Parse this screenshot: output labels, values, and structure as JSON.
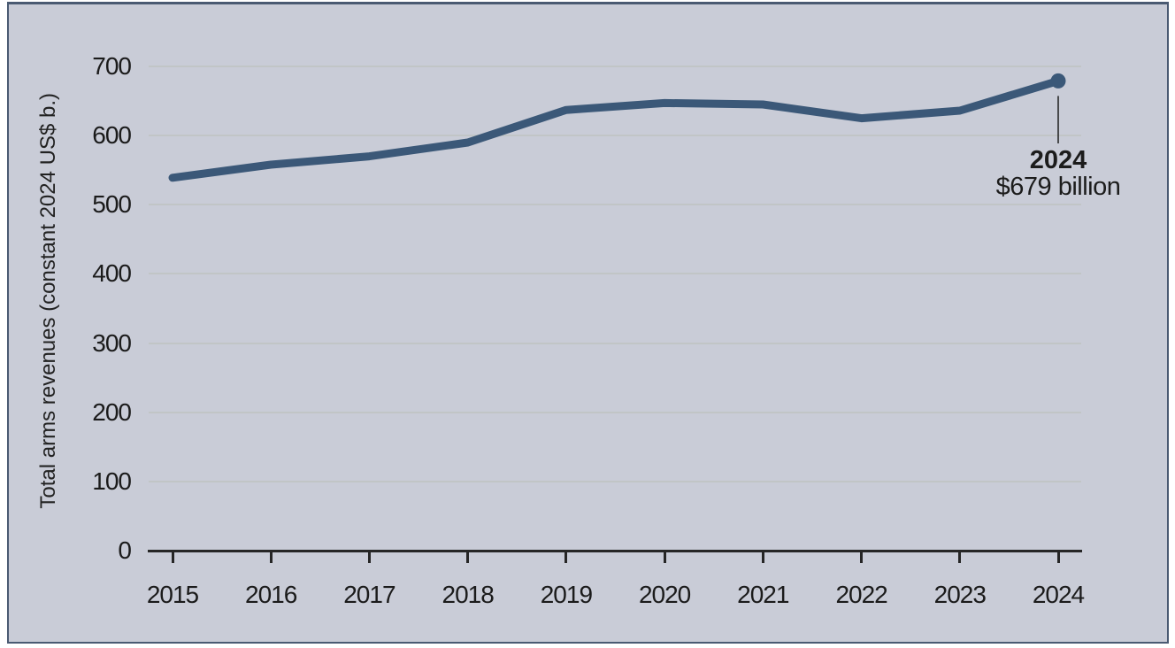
{
  "chart_panel": {
    "background_color": "#c9ccd7",
    "border_color": "#4a5a72"
  },
  "chart_data": {
    "type": "line",
    "title": "",
    "xlabel": "",
    "ylabel": "Total arms revenues (constant 2024 US$ b.)",
    "categories": [
      "2015",
      "2016",
      "2017",
      "2018",
      "2019",
      "2020",
      "2021",
      "2022",
      "2023",
      "2024"
    ],
    "series": [
      {
        "name": "Total arms revenues",
        "values": [
          539,
          558,
          570,
          590,
          637,
          647,
          645,
          625,
          636,
          679
        ]
      }
    ],
    "ylim": [
      0,
      700
    ],
    "y_ticks": [
      0,
      100,
      200,
      300,
      400,
      500,
      600,
      700
    ],
    "grid": "horizontal",
    "legend": "none",
    "line_color": "#3b5878",
    "marker_color": "#3b5878",
    "end_marker": "filled-circle-on-last-point",
    "annotation": {
      "year_label": "2024",
      "value_label": "$679 billion"
    }
  }
}
